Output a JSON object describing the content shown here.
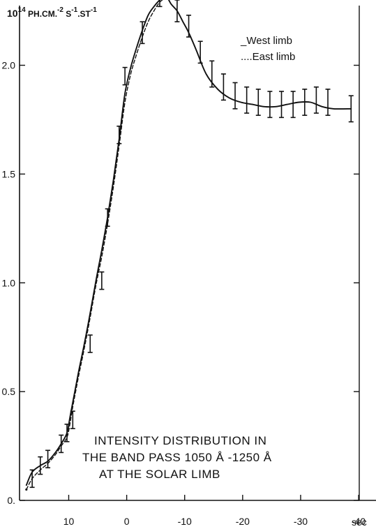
{
  "chart_data": {
    "type": "line",
    "title": "",
    "units": {
      "base": "10",
      "exp": "14",
      "rest": [
        {
          "t": " PH.CM.",
          "s": "-2"
        },
        {
          "t": " S",
          "s": "-1"
        },
        {
          "t": ".ST",
          "s": "-1"
        }
      ]
    },
    "xlabel": "sec",
    "ylabel": "",
    "xlim": [
      18,
      -43
    ],
    "ylim": [
      0,
      2.3
    ],
    "x_ticks": [
      10,
      0,
      -10,
      -20,
      -30,
      -40
    ],
    "x_tick_labels": [
      "10",
      "0",
      "-10",
      "-20",
      "-30",
      "-40"
    ],
    "y_ticks": [
      0,
      0.5,
      1.0,
      1.5,
      2.0
    ],
    "y_tick_labels": [
      "0.",
      "0.5",
      "1.0",
      "1.5",
      "2.0"
    ],
    "legend": {
      "position": "top-right",
      "entries": [
        {
          "prefix": "_",
          "label": "West limb",
          "style": "solid"
        },
        {
          "prefix": "....",
          "label": "East limb",
          "style": "dashed"
        }
      ]
    },
    "annotation": [
      "INTENSITY DISTRIBUTION IN",
      "THE BAND PASS  1050 Å -1250 Å",
      "AT THE SOLAR LIMB"
    ],
    "series": [
      {
        "name": "West limb",
        "style": "solid",
        "x": [
          17.3,
          16.3,
          14.9,
          13.6,
          12.3,
          11.3,
          10.3,
          9.8,
          9.3,
          8.3,
          7.3,
          6.3,
          5.3,
          4.3,
          3.3,
          2.3,
          1.3,
          0.3,
          -0.7,
          -1.7,
          -2.7,
          -3.7,
          -4.7,
          -5.7,
          -6.7,
          -7.7,
          -8.7,
          -9.7,
          -10.7,
          -12.0,
          -13.7,
          -15.7,
          -17.7,
          -19.7,
          -21.7,
          -23.7,
          -25.7,
          -27.7,
          -29.7,
          -31.7,
          -33.7,
          -35.7,
          -38.7
        ],
        "y": [
          0.07,
          0.13,
          0.16,
          0.18,
          0.22,
          0.26,
          0.31,
          0.38,
          0.45,
          0.59,
          0.72,
          0.86,
          1.01,
          1.15,
          1.3,
          1.47,
          1.66,
          1.87,
          1.99,
          2.08,
          2.16,
          2.23,
          2.27,
          2.3,
          2.32,
          2.28,
          2.25,
          2.2,
          2.15,
          2.07,
          1.96,
          1.89,
          1.85,
          1.83,
          1.82,
          1.81,
          1.81,
          1.82,
          1.83,
          1.83,
          1.81,
          1.8,
          1.8
        ]
      },
      {
        "name": "East limb",
        "style": "dashed",
        "x": [
          17.3,
          16.3,
          14.9,
          13.6,
          12.3,
          11.3,
          10.3,
          9.8,
          9.3,
          8.3,
          7.3,
          6.3,
          5.3,
          4.3,
          3.3,
          2.3,
          1.3,
          0.3,
          -0.7,
          -1.7,
          -2.7,
          -3.7,
          -4.7,
          -5.7,
          -6.7
        ],
        "y": [
          0.05,
          0.1,
          0.14,
          0.17,
          0.21,
          0.25,
          0.29,
          0.35,
          0.43,
          0.57,
          0.7,
          0.84,
          0.99,
          1.12,
          1.27,
          1.44,
          1.63,
          1.83,
          1.96,
          2.05,
          2.13,
          2.2,
          2.25,
          2.29,
          2.31
        ]
      }
    ],
    "error_bars": {
      "series": "West limb",
      "x": [
        16.3,
        14.9,
        13.6,
        11.3,
        10.3,
        9.3,
        6.3,
        4.3,
        3.3,
        1.3,
        0.3,
        -2.7,
        -5.7,
        -8.7,
        -10.7,
        -12.7,
        -14.7,
        -16.7,
        -18.7,
        -20.7,
        -22.7,
        -24.7,
        -26.7,
        -28.7,
        -30.7,
        -32.7,
        -34.7,
        -38.7
      ],
      "y": [
        0.1,
        0.16,
        0.19,
        0.26,
        0.31,
        0.37,
        0.72,
        1.01,
        1.3,
        1.68,
        1.95,
        2.15,
        2.32,
        2.25,
        2.18,
        2.06,
        1.96,
        1.9,
        1.86,
        1.84,
        1.83,
        1.82,
        1.82,
        1.82,
        1.83,
        1.84,
        1.83,
        1.8
      ],
      "err": [
        0.04,
        0.04,
        0.04,
        0.04,
        0.04,
        0.04,
        0.04,
        0.04,
        0.04,
        0.04,
        0.04,
        0.05,
        0.05,
        0.05,
        0.05,
        0.05,
        0.06,
        0.06,
        0.06,
        0.06,
        0.06,
        0.06,
        0.06,
        0.06,
        0.06,
        0.06,
        0.06,
        0.06
      ]
    }
  }
}
